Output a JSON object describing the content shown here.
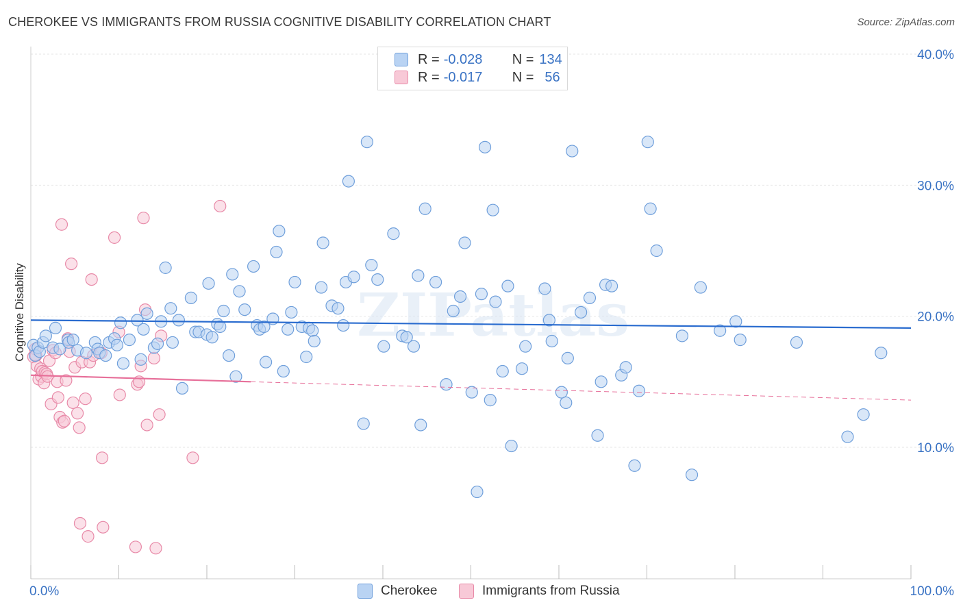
{
  "title": "CHEROKEE VS IMMIGRANTS FROM RUSSIA COGNITIVE DISABILITY CORRELATION CHART",
  "source": "Source: ZipAtlas.com",
  "watermark": "ZIPatlas",
  "legend": {
    "rows": [
      {
        "r_label": "R =",
        "r_value": "-0.028",
        "n_label": "N =",
        "n_value": "134"
      },
      {
        "r_label": "R =",
        "r_value": "-0.017",
        "n_label": "N =",
        "n_value": "56"
      }
    ]
  },
  "colors": {
    "cherokee_fill": "#b9d3f3",
    "cherokee_stroke": "#6f9fdb",
    "cherokee_line": "#2a6ccf",
    "russia_fill": "#f8c9d7",
    "russia_stroke": "#e88aa8",
    "russia_line": "#e7709a",
    "axis_text": "#3a73c4",
    "grid": "#e6e6e6"
  },
  "chart_data": {
    "type": "scatter",
    "title": "CHEROKEE VS IMMIGRANTS FROM RUSSIA COGNITIVE DISABILITY CORRELATION CHART",
    "xlabel": "",
    "ylabel": "Cognitive Disability",
    "xlim": [
      0,
      100
    ],
    "ylim": [
      0,
      42
    ],
    "x_tick_labels": [
      "0.0%",
      "100.0%"
    ],
    "y_ticks": [
      10,
      20,
      30,
      40
    ],
    "y_tick_labels": [
      "10.0%",
      "20.0%",
      "30.0%",
      "40.0%"
    ],
    "grid": true,
    "legend_placement": "bottom",
    "series": [
      {
        "name": "Cherokee",
        "r": -0.028,
        "n": 134,
        "trend": {
          "x": [
            0,
            100
          ],
          "y": [
            19.7,
            19.1
          ],
          "style": "solid"
        },
        "points": [
          [
            0.3,
            17.8
          ],
          [
            0.5,
            17.0
          ],
          [
            0.8,
            17.6
          ],
          [
            1.0,
            17.3
          ],
          [
            1.4,
            18.0
          ],
          [
            1.7,
            18.5
          ],
          [
            2.5,
            17.6
          ],
          [
            2.8,
            19.1
          ],
          [
            3.3,
            17.5
          ],
          [
            4.2,
            18.2
          ],
          [
            4.3,
            18.0
          ],
          [
            4.8,
            18.2
          ],
          [
            5.3,
            17.4
          ],
          [
            6.3,
            17.2
          ],
          [
            7.3,
            18.0
          ],
          [
            7.6,
            17.5
          ],
          [
            7.8,
            17.2
          ],
          [
            8.5,
            17.0
          ],
          [
            8.9,
            18.0
          ],
          [
            9.5,
            18.3
          ],
          [
            9.8,
            17.8
          ],
          [
            10.2,
            19.5
          ],
          [
            10.5,
            16.4
          ],
          [
            11.2,
            18.2
          ],
          [
            12.1,
            19.7
          ],
          [
            12.5,
            16.7
          ],
          [
            12.8,
            19.0
          ],
          [
            13.2,
            20.2
          ],
          [
            14.0,
            17.6
          ],
          [
            14.4,
            17.9
          ],
          [
            14.8,
            19.6
          ],
          [
            15.3,
            23.7
          ],
          [
            15.9,
            20.6
          ],
          [
            16.1,
            18.0
          ],
          [
            16.8,
            19.7
          ],
          [
            17.2,
            14.5
          ],
          [
            18.2,
            21.4
          ],
          [
            18.7,
            18.8
          ],
          [
            19.1,
            18.8
          ],
          [
            20.0,
            18.6
          ],
          [
            20.2,
            22.5
          ],
          [
            20.6,
            18.4
          ],
          [
            21.2,
            19.4
          ],
          [
            21.5,
            19.2
          ],
          [
            21.9,
            20.4
          ],
          [
            22.5,
            17.0
          ],
          [
            22.9,
            23.2
          ],
          [
            23.3,
            15.4
          ],
          [
            23.7,
            21.9
          ],
          [
            24.3,
            20.5
          ],
          [
            25.3,
            23.8
          ],
          [
            25.7,
            19.3
          ],
          [
            26.0,
            19.0
          ],
          [
            26.5,
            19.2
          ],
          [
            26.7,
            16.5
          ],
          [
            27.5,
            19.8
          ],
          [
            27.9,
            24.9
          ],
          [
            28.2,
            26.5
          ],
          [
            28.7,
            15.8
          ],
          [
            29.2,
            19.0
          ],
          [
            29.6,
            20.3
          ],
          [
            30.0,
            22.6
          ],
          [
            30.8,
            19.2
          ],
          [
            31.3,
            16.9
          ],
          [
            31.6,
            19.1
          ],
          [
            32.0,
            18.9
          ],
          [
            32.2,
            18.1
          ],
          [
            33.0,
            22.2
          ],
          [
            33.2,
            25.6
          ],
          [
            34.2,
            20.8
          ],
          [
            34.9,
            20.6
          ],
          [
            35.5,
            19.3
          ],
          [
            35.8,
            22.6
          ],
          [
            36.1,
            30.3
          ],
          [
            36.7,
            23.0
          ],
          [
            37.8,
            11.8
          ],
          [
            38.2,
            33.3
          ],
          [
            38.7,
            23.9
          ],
          [
            39.4,
            22.8
          ],
          [
            40.1,
            17.7
          ],
          [
            41.2,
            26.3
          ],
          [
            42.2,
            18.5
          ],
          [
            42.7,
            18.4
          ],
          [
            43.5,
            17.7
          ],
          [
            44.0,
            23.1
          ],
          [
            44.3,
            11.7
          ],
          [
            44.8,
            28.2
          ],
          [
            46.0,
            22.6
          ],
          [
            47.2,
            14.8
          ],
          [
            48.0,
            20.4
          ],
          [
            48.8,
            21.5
          ],
          [
            49.3,
            25.6
          ],
          [
            50.1,
            14.2
          ],
          [
            50.7,
            6.6
          ],
          [
            51.2,
            21.7
          ],
          [
            51.6,
            32.9
          ],
          [
            52.2,
            13.6
          ],
          [
            52.5,
            28.1
          ],
          [
            52.8,
            21.1
          ],
          [
            53.6,
            15.8
          ],
          [
            54.2,
            22.3
          ],
          [
            54.6,
            10.1
          ],
          [
            55.8,
            16.0
          ],
          [
            56.2,
            17.7
          ],
          [
            58.4,
            22.1
          ],
          [
            58.9,
            19.7
          ],
          [
            59.2,
            18.1
          ],
          [
            60.3,
            14.2
          ],
          [
            60.8,
            13.4
          ],
          [
            61.0,
            16.8
          ],
          [
            61.5,
            32.6
          ],
          [
            62.5,
            20.3
          ],
          [
            63.5,
            21.4
          ],
          [
            64.4,
            10.9
          ],
          [
            64.8,
            15.0
          ],
          [
            65.3,
            22.4
          ],
          [
            66.0,
            22.3
          ],
          [
            67.1,
            15.5
          ],
          [
            67.6,
            16.1
          ],
          [
            68.6,
            8.6
          ],
          [
            69.1,
            14.3
          ],
          [
            70.1,
            33.3
          ],
          [
            70.4,
            28.2
          ],
          [
            71.1,
            25.0
          ],
          [
            74.0,
            18.5
          ],
          [
            75.1,
            7.9
          ],
          [
            76.1,
            22.2
          ],
          [
            78.3,
            18.9
          ],
          [
            80.1,
            19.6
          ],
          [
            80.6,
            18.2
          ],
          [
            87.0,
            18.0
          ],
          [
            92.8,
            10.8
          ],
          [
            94.6,
            12.5
          ],
          [
            96.6,
            17.2
          ]
        ]
      },
      {
        "name": "Immigrants from Russia",
        "r": -0.017,
        "n": 56,
        "trend": {
          "x": [
            0,
            25,
            100
          ],
          "y": [
            15.5,
            15.0,
            13.6
          ],
          "style": "solid-then-dashed"
        },
        "points": [
          [
            0.3,
            16.9
          ],
          [
            0.5,
            17.5
          ],
          [
            0.6,
            17.0
          ],
          [
            0.7,
            16.2
          ],
          [
            0.9,
            15.2
          ],
          [
            1.1,
            16.0
          ],
          [
            1.2,
            15.4
          ],
          [
            1.3,
            15.8
          ],
          [
            1.5,
            14.9
          ],
          [
            1.6,
            15.7
          ],
          [
            1.8,
            15.6
          ],
          [
            1.9,
            15.4
          ],
          [
            2.1,
            16.6
          ],
          [
            2.3,
            13.3
          ],
          [
            2.5,
            17.4
          ],
          [
            2.8,
            17.2
          ],
          [
            3.0,
            15.0
          ],
          [
            3.1,
            13.8
          ],
          [
            3.3,
            12.3
          ],
          [
            3.5,
            27.0
          ],
          [
            3.6,
            11.9
          ],
          [
            3.8,
            12.0
          ],
          [
            4.0,
            15.1
          ],
          [
            4.2,
            18.3
          ],
          [
            4.4,
            17.3
          ],
          [
            4.6,
            24.0
          ],
          [
            4.8,
            13.4
          ],
          [
            5.0,
            16.1
          ],
          [
            5.3,
            12.6
          ],
          [
            5.5,
            11.5
          ],
          [
            5.6,
            4.2
          ],
          [
            5.8,
            16.5
          ],
          [
            6.2,
            13.7
          ],
          [
            6.5,
            3.2
          ],
          [
            6.7,
            16.5
          ],
          [
            6.9,
            22.8
          ],
          [
            7.1,
            17.0
          ],
          [
            8.0,
            17.2
          ],
          [
            8.1,
            9.2
          ],
          [
            8.2,
            3.9
          ],
          [
            9.5,
            26.0
          ],
          [
            10.0,
            18.8
          ],
          [
            10.1,
            14.0
          ],
          [
            11.9,
            2.4
          ],
          [
            12.1,
            14.8
          ],
          [
            12.3,
            15.0
          ],
          [
            12.5,
            16.2
          ],
          [
            12.8,
            27.5
          ],
          [
            13.0,
            20.5
          ],
          [
            13.2,
            11.7
          ],
          [
            14.0,
            16.8
          ],
          [
            14.2,
            2.3
          ],
          [
            14.6,
            12.5
          ],
          [
            18.4,
            9.2
          ],
          [
            21.5,
            28.4
          ],
          [
            14.8,
            18.5
          ]
        ]
      }
    ]
  },
  "bottom_legend": [
    {
      "label": "Cherokee"
    },
    {
      "label": "Immigrants from Russia"
    }
  ]
}
